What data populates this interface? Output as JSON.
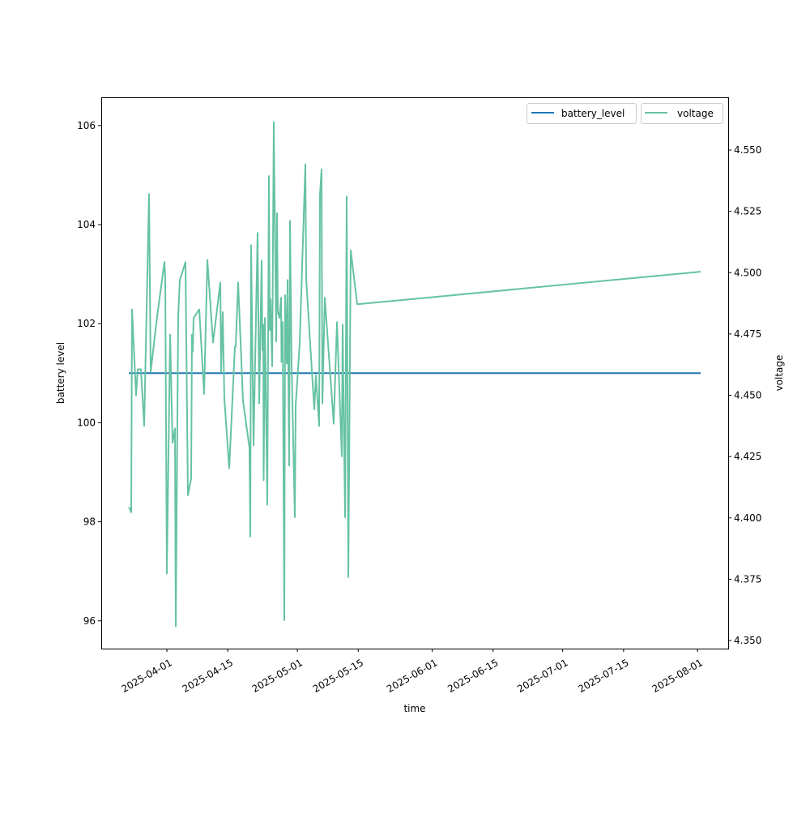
{
  "chart_data": {
    "type": "line",
    "title": "",
    "xlabel": "time",
    "ylabel_left": "battery level",
    "ylabel_right": "voltage",
    "x_unit": "days since 2025-04-01",
    "xlim": [
      -15.08,
      129.05
    ],
    "ylim_left": [
      95.44,
      106.57
    ],
    "ylim_right": [
      4.3467,
      4.5715
    ],
    "grid": false,
    "x_ticks": [
      {
        "value": 0,
        "label": "2025-04-01"
      },
      {
        "value": 14,
        "label": "2025-04-15"
      },
      {
        "value": 30,
        "label": "2025-05-01"
      },
      {
        "value": 44,
        "label": "2025-05-15"
      },
      {
        "value": 61,
        "label": "2025-06-01"
      },
      {
        "value": 75,
        "label": "2025-06-15"
      },
      {
        "value": 91,
        "label": "2025-07-01"
      },
      {
        "value": 105,
        "label": "2025-07-15"
      },
      {
        "value": 122,
        "label": "2025-08-01"
      }
    ],
    "y_ticks_left": [
      {
        "value": 96,
        "label": "96"
      },
      {
        "value": 98,
        "label": "98"
      },
      {
        "value": 100,
        "label": "100"
      },
      {
        "value": 102,
        "label": "102"
      },
      {
        "value": 104,
        "label": "104"
      },
      {
        "value": 106,
        "label": "106"
      }
    ],
    "y_ticks_right": [
      {
        "value": 4.35,
        "label": "4.350"
      },
      {
        "value": 4.375,
        "label": "4.375"
      },
      {
        "value": 4.4,
        "label": "4.400"
      },
      {
        "value": 4.425,
        "label": "4.425"
      },
      {
        "value": 4.45,
        "label": "4.450"
      },
      {
        "value": 4.475,
        "label": "4.475"
      },
      {
        "value": 4.5,
        "label": "4.500"
      },
      {
        "value": 4.525,
        "label": "4.525"
      },
      {
        "value": 4.55,
        "label": "4.550"
      }
    ],
    "legend_placement": "top-right",
    "series": [
      {
        "name": "battery_level",
        "axis": "left",
        "color": "#1f77b4",
        "x": [
          -8.75,
          122.72
        ],
        "y": [
          101,
          101
        ]
      },
      {
        "name": "voltage",
        "axis": "right",
        "color": "#66c2a5",
        "x": [
          -8.75,
          -8.19,
          -8.01,
          -7.08,
          -6.7,
          -5.96,
          -5.21,
          -4.1,
          -3.72,
          -2.23,
          -0.56,
          -0.37,
          0,
          0.74,
          1.3,
          1.86,
          2.05,
          2.61,
          2.98,
          4.28,
          4.84,
          5.59,
          5.77,
          5.96,
          6.15,
          7.45,
          8.57,
          9.31,
          10.61,
          12.29,
          12.48,
          12.85,
          13.22,
          14.34,
          15.64,
          15.83,
          16.39,
          17.5,
          18.99,
          19.18,
          19.37,
          19.93,
          20.86,
          21.23,
          21.79,
          21.97,
          22.16,
          22.25,
          22.53,
          23.09,
          23.46,
          23.65,
          23.84,
          24.21,
          24.58,
          25.14,
          25.33,
          25.51,
          25.88,
          26.26,
          26.35,
          26.63,
          27.0,
          27.19,
          27.56,
          27.75,
          28.12,
          28.31,
          28.68,
          29.42,
          29.61,
          30.54,
          31.84,
          32.03,
          33.89,
          34.26,
          35.01,
          35.2,
          35.57,
          35.75,
          36.31,
          38.36,
          39.11,
          40.22,
          40.41,
          40.97,
          41.34,
          41.71,
          42.27,
          43.76,
          122.72
        ],
        "y": [
          4.4044,
          4.4023,
          4.485,
          4.4499,
          4.4606,
          4.4606,
          4.4375,
          4.5321,
          4.4595,
          4.4822,
          4.5043,
          4.4974,
          4.3773,
          4.4747,
          4.4306,
          4.4365,
          4.3558,
          4.4822,
          4.497,
          4.5043,
          4.4092,
          4.4161,
          4.4747,
          4.4678,
          4.4815,
          4.485,
          4.4506,
          4.5052,
          4.4715,
          4.496,
          4.4595,
          4.4839,
          4.4485,
          4.4202,
          4.4698,
          4.4698,
          4.496,
          4.4478,
          4.4285,
          4.3924,
          4.5112,
          4.4295,
          4.5162,
          4.4467,
          4.5049,
          4.4684,
          4.4788,
          4.4154,
          4.4815,
          4.4054,
          4.5394,
          4.4767,
          4.4891,
          4.4618,
          4.5614,
          4.4719,
          4.5242,
          4.4843,
          4.4815,
          4.4898,
          4.4636,
          4.4798,
          4.3583,
          4.4908,
          4.463,
          4.497,
          4.4213,
          4.5211,
          4.463,
          4.4003,
          4.4457,
          4.4712,
          4.5442,
          4.4974,
          4.4443,
          4.4581,
          4.4375,
          4.5318,
          4.5421,
          4.4467,
          4.4898,
          4.4384,
          4.4798,
          4.4251,
          4.4788,
          4.4003,
          4.5311,
          4.3759,
          4.5091,
          4.4871,
          4.5004
        ]
      }
    ]
  }
}
